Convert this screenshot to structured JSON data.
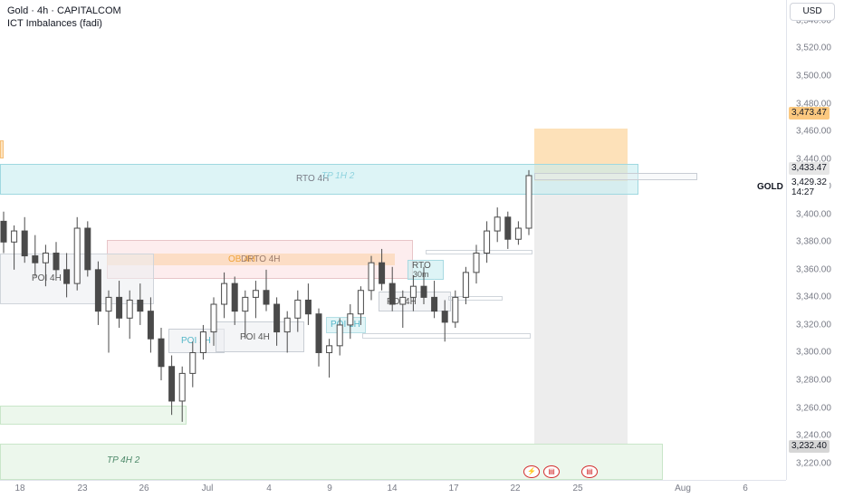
{
  "header": {
    "title": "Gold · 4h · CAPITALCOM",
    "indicator": "ICT Imbalances (fadi)"
  },
  "currency": "USD",
  "symbol_tag": "GOLD",
  "price_axis": {
    "ticks": [
      "3,540.00",
      "3,520.00",
      "3,500.00",
      "3,480.00",
      "3,460.00",
      "3,440.00",
      "3,420.00",
      "3,400.00",
      "3,380.00",
      "3,360.00",
      "3,340.00",
      "3,320.00",
      "3,300.00",
      "3,280.00",
      "3,260.00",
      "3,240.00",
      "3,220.00"
    ],
    "tag_target": "3,473.47",
    "tag_last": "3,433.47",
    "tag_current": "3,429.32",
    "tag_countdown": "14:27",
    "tag_stop": "3,232.40"
  },
  "time_axis": {
    "ticks": [
      "18",
      "23",
      "26",
      "Jul",
      "4",
      "9",
      "14",
      "17",
      "22",
      "25",
      "Aug",
      "6"
    ]
  },
  "zones": {
    "rto_4h": "RTO 4H",
    "tp_1h_2": "TP 1H 2",
    "ob_4h": "OB 4H",
    "drto_4h": "DRTO 4H",
    "rto_30m": "RTO",
    "rto_30m_sub": "30m",
    "poi_4h_a": "POI 4H",
    "poi_1h_a": "POI 1H",
    "poi_4h_b": "POI 4H",
    "poi_1h_b": "POI 1H",
    "poi_4h_c": "POI 4H",
    "tp_4h_2": "TP 4H 2"
  },
  "colors": {
    "up": "#089981",
    "down": "#f23645",
    "candle": "#4a4a4a",
    "target_zone": "#fbc87f",
    "stop_zone": "#e6e6e6",
    "rto_zone": "#c6ecf0",
    "ob_zone": "#fcd9c0",
    "poi_zone": "#f1f3f5",
    "tp_zone": "#e4f3e4"
  },
  "chart_data": {
    "type": "candlestick",
    "ylim": [
      3208,
      3555
    ],
    "last_price": 3429.32,
    "levels": {
      "target": 3473.47,
      "entry": 3433.47,
      "stop": 3232.4
    },
    "x_ticks": [
      "18",
      "23",
      "26",
      "Jul",
      "4",
      "9",
      "14",
      "17",
      "22",
      "25",
      "Aug",
      "6"
    ],
    "ohlc_approx": [
      [
        3395,
        3402,
        3372,
        3380
      ],
      [
        3380,
        3392,
        3360,
        3388
      ],
      [
        3388,
        3398,
        3365,
        3370
      ],
      [
        3370,
        3385,
        3355,
        3365
      ],
      [
        3365,
        3378,
        3348,
        3372
      ],
      [
        3372,
        3380,
        3355,
        3360
      ],
      [
        3360,
        3372,
        3340,
        3350
      ],
      [
        3350,
        3398,
        3345,
        3390
      ],
      [
        3390,
        3395,
        3355,
        3360
      ],
      [
        3360,
        3366,
        3320,
        3330
      ],
      [
        3330,
        3345,
        3300,
        3340
      ],
      [
        3340,
        3352,
        3318,
        3325
      ],
      [
        3325,
        3345,
        3310,
        3338
      ],
      [
        3338,
        3350,
        3320,
        3330
      ],
      [
        3330,
        3340,
        3300,
        3310
      ],
      [
        3310,
        3318,
        3280,
        3290
      ],
      [
        3290,
        3298,
        3255,
        3265
      ],
      [
        3265,
        3290,
        3250,
        3285
      ],
      [
        3285,
        3308,
        3275,
        3300
      ],
      [
        3300,
        3320,
        3295,
        3315
      ],
      [
        3315,
        3340,
        3305,
        3335
      ],
      [
        3335,
        3358,
        3325,
        3350
      ],
      [
        3350,
        3355,
        3320,
        3330
      ],
      [
        3330,
        3345,
        3310,
        3340
      ],
      [
        3340,
        3352,
        3325,
        3345
      ],
      [
        3345,
        3360,
        3330,
        3335
      ],
      [
        3335,
        3340,
        3305,
        3315
      ],
      [
        3315,
        3330,
        3300,
        3325
      ],
      [
        3325,
        3345,
        3315,
        3338
      ],
      [
        3338,
        3350,
        3320,
        3328
      ],
      [
        3328,
        3332,
        3290,
        3300
      ],
      [
        3300,
        3310,
        3282,
        3305
      ],
      [
        3305,
        3325,
        3298,
        3320
      ],
      [
        3320,
        3335,
        3310,
        3328
      ],
      [
        3328,
        3348,
        3320,
        3345
      ],
      [
        3345,
        3370,
        3338,
        3365
      ],
      [
        3365,
        3375,
        3345,
        3350
      ],
      [
        3350,
        3362,
        3330,
        3335
      ],
      [
        3335,
        3345,
        3318,
        3340
      ],
      [
        3340,
        3356,
        3330,
        3348
      ],
      [
        3348,
        3362,
        3335,
        3340
      ],
      [
        3340,
        3352,
        3325,
        3330
      ],
      [
        3330,
        3338,
        3308,
        3322
      ],
      [
        3322,
        3345,
        3318,
        3340
      ],
      [
        3340,
        3362,
        3335,
        3358
      ],
      [
        3358,
        3378,
        3350,
        3372
      ],
      [
        3372,
        3395,
        3365,
        3388
      ],
      [
        3388,
        3405,
        3380,
        3398
      ],
      [
        3398,
        3402,
        3375,
        3382
      ],
      [
        3382,
        3395,
        3378,
        3390
      ],
      [
        3390,
        3432,
        3385,
        3428
      ]
    ]
  }
}
